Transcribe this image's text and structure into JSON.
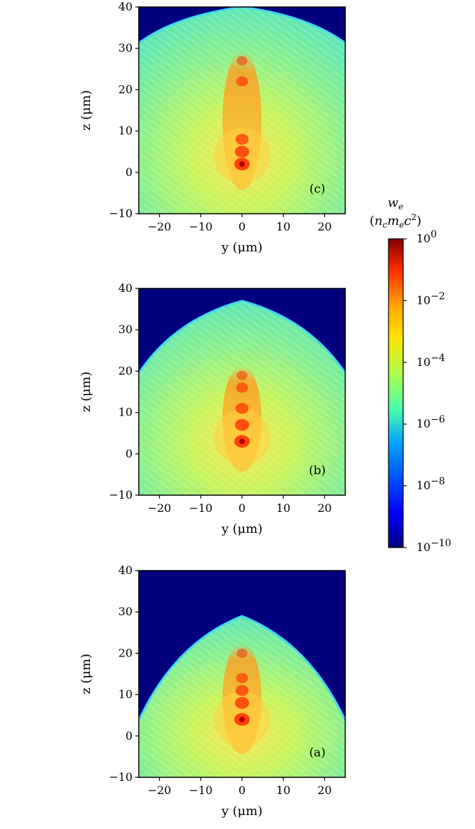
{
  "colorbar": {
    "title_line1": "w_e",
    "title_line2": "(n_c m_e c^2)",
    "scale": "log",
    "range": [
      1e-10,
      1
    ],
    "ticks": [
      {
        "base": "10",
        "exp": "0",
        "value": 1
      },
      {
        "base": "10",
        "exp": "−2",
        "value": 0.01
      },
      {
        "base": "10",
        "exp": "−4",
        "value": 0.0001
      },
      {
        "base": "10",
        "exp": "−6",
        "value": 1e-06
      },
      {
        "base": "10",
        "exp": "−8",
        "value": 1e-08
      },
      {
        "base": "10",
        "exp": "−10",
        "value": 1e-10
      }
    ],
    "colormap": "jet",
    "colors": [
      "#00007f",
      "#0000ff",
      "#00a4ff",
      "#4cffaa",
      "#aaff4c",
      "#ffa800",
      "#ff2a00",
      "#800000"
    ]
  },
  "chart_data": [
    {
      "type": "heatmap",
      "panel_label": "(c)",
      "xlabel": "y (μm)",
      "ylabel": "z (μm)",
      "xlim": [
        -25,
        25
      ],
      "ylim": [
        -10,
        40
      ],
      "xticks": [
        "−20",
        "−10",
        "0",
        "10",
        "20"
      ],
      "yticks": [
        "−10",
        "0",
        "10",
        "20",
        "30",
        "40"
      ],
      "xtick_values": [
        -20,
        -10,
        0,
        10,
        20
      ],
      "ytick_values": [
        -10,
        0,
        10,
        20,
        30,
        40
      ],
      "front_z_center": 40,
      "front_z_edge": 31,
      "hotspots_z": [
        2,
        5,
        8,
        22,
        27
      ],
      "background": "#00007f"
    },
    {
      "type": "heatmap",
      "panel_label": "(b)",
      "xlabel": "y (μm)",
      "ylabel": "z (μm)",
      "xlim": [
        -25,
        25
      ],
      "ylim": [
        -10,
        40
      ],
      "xticks": [
        "−20",
        "−10",
        "0",
        "10",
        "20"
      ],
      "yticks": [
        "−10",
        "0",
        "10",
        "20",
        "30",
        "40"
      ],
      "xtick_values": [
        -20,
        -10,
        0,
        10,
        20
      ],
      "ytick_values": [
        -10,
        0,
        10,
        20,
        30,
        40
      ],
      "front_z_center": 37,
      "front_z_edge": 19,
      "hotspots_z": [
        3,
        7,
        11,
        16,
        19
      ],
      "background": "#00007f"
    },
    {
      "type": "heatmap",
      "panel_label": "(a)",
      "xlabel": "y (μm)",
      "ylabel": "z (μm)",
      "xlim": [
        -25,
        25
      ],
      "ylim": [
        -10,
        40
      ],
      "xticks": [
        "−20",
        "−10",
        "0",
        "10",
        "20"
      ],
      "yticks": [
        "−10",
        "0",
        "10",
        "20",
        "30",
        "40"
      ],
      "xtick_values": [
        -20,
        -10,
        0,
        10,
        20
      ],
      "ytick_values": [
        -10,
        0,
        10,
        20,
        30,
        40
      ],
      "front_z_center": 29,
      "front_z_edge": 3,
      "hotspots_z": [
        4,
        8,
        11,
        14,
        20
      ],
      "background": "#00007f"
    }
  ]
}
